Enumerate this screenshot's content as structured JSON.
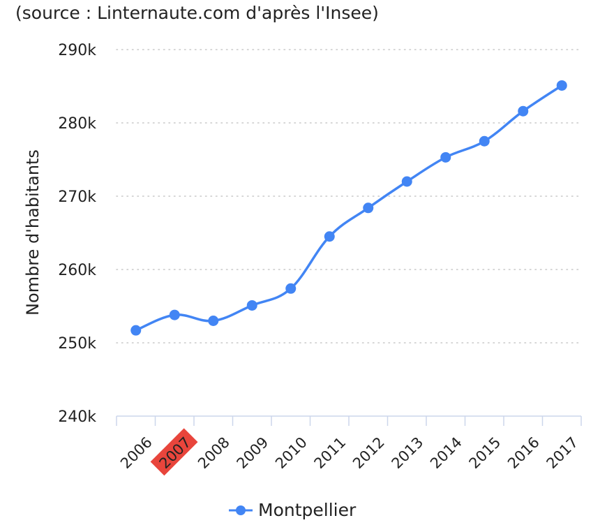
{
  "source_note": "(source : Linternaute.com d'après l'Insee)",
  "chart_data": {
    "type": "line",
    "x": [
      "2006",
      "2007",
      "2008",
      "2009",
      "2010",
      "2011",
      "2012",
      "2013",
      "2014",
      "2015",
      "2016",
      "2017"
    ],
    "series": [
      {
        "name": "Montpellier",
        "values": [
          251700,
          253800,
          253000,
          255100,
          257400,
          264500,
          268400,
          272000,
          275300,
          277500,
          281600,
          285100
        ],
        "color": "#4285f4"
      }
    ],
    "ylabel": "Nombre d'habitants",
    "xlabel": "",
    "ylim": [
      240000,
      290000
    ],
    "yticks": [
      240000,
      250000,
      260000,
      270000,
      280000,
      290000
    ],
    "ytick_labels": [
      "240k",
      "250k",
      "260k",
      "270k",
      "280k",
      "290k"
    ],
    "highlighted_x_label": "2007",
    "highlight_color": "#e8453c",
    "grid": "horizontal dotted",
    "legend": "bottom-center"
  }
}
